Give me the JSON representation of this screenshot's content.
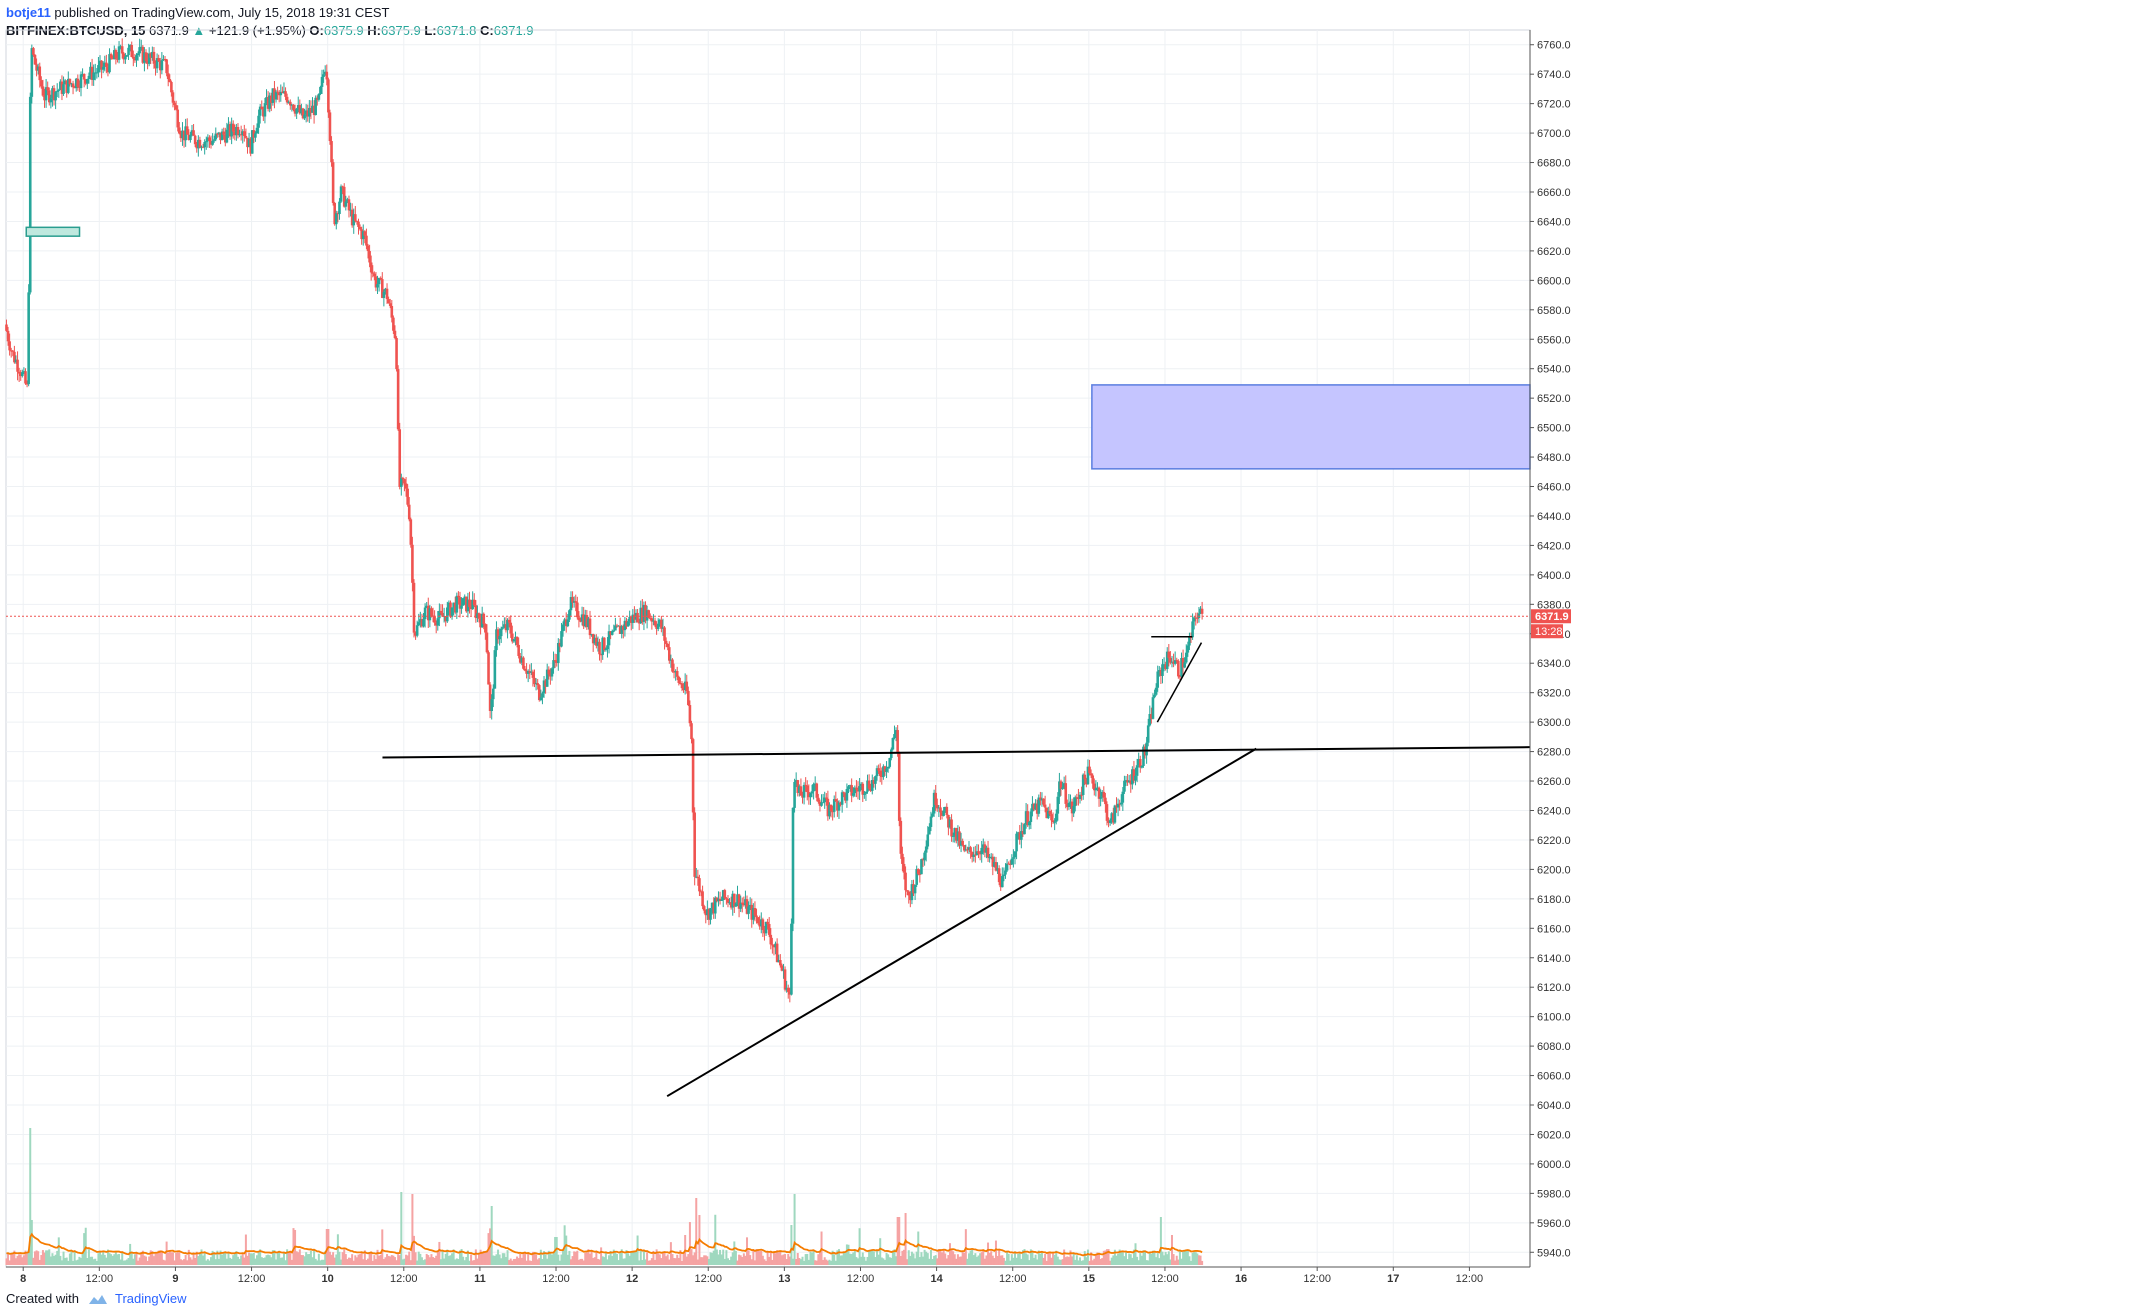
{
  "header": {
    "author": "botje11",
    "published_text": "published on TradingView.com, July 15, 2018 19:31 CEST",
    "symbol": "BITFINEX:BTCUSD, 15",
    "last_price": "6371.9",
    "change": "+121.9 (+1.95%)",
    "o_label": "O:",
    "o_value": "6375.9",
    "h_label": "H:",
    "h_value": "6375.9",
    "l_label": "L:",
    "l_value": "6371.8",
    "c_label": "C:",
    "c_value": "6371.9"
  },
  "footer": {
    "created_with": "Created with",
    "brand": "TradingView"
  },
  "colors": {
    "up": "#26a69a",
    "down": "#ef5350",
    "up_volume": "#9fd8bf",
    "down_volume": "#f5a3a3",
    "ma": "#f57c00",
    "grid": "#eef1f4",
    "rect_fill": "#c5c5ff",
    "rect_stroke": "#5b7ee0",
    "current_price": "#ef5350"
  },
  "chart_data": {
    "type": "candlestick",
    "symbol": "BITFINEX:BTCUSD",
    "interval": "15",
    "ylim": [
      5930,
      6770
    ],
    "y_ticks": [
      "6760.0",
      "6740.0",
      "6720.0",
      "6700.0",
      "6680.0",
      "6660.0",
      "6640.0",
      "6620.0",
      "6600.0",
      "6580.0",
      "6560.0",
      "6540.0",
      "6520.0",
      "6500.0",
      "6480.0",
      "6460.0",
      "6440.0",
      "6420.0",
      "6400.0",
      "6380.0",
      "6360.0",
      "6340.0",
      "6320.0",
      "6300.0",
      "6280.0",
      "6260.0",
      "6240.0",
      "6220.0",
      "6200.0",
      "6180.0",
      "6160.0",
      "6140.0",
      "6120.0",
      "6100.0",
      "6080.0",
      "6060.0",
      "6040.0",
      "6020.0",
      "6000.0",
      "5980.0",
      "5960.0",
      "5940.0"
    ],
    "x_ticks": [
      {
        "label": "8",
        "day": 8.0
      },
      {
        "label": "12:00",
        "day": 8.5
      },
      {
        "label": "9",
        "day": 9.0
      },
      {
        "label": "12:00",
        "day": 9.5
      },
      {
        "label": "10",
        "day": 10.0
      },
      {
        "label": "12:00",
        "day": 10.5
      },
      {
        "label": "11",
        "day": 11.0
      },
      {
        "label": "12:00",
        "day": 11.5
      },
      {
        "label": "12",
        "day": 12.0
      },
      {
        "label": "12:00",
        "day": 12.5
      },
      {
        "label": "13",
        "day": 13.0
      },
      {
        "label": "12:00",
        "day": 13.5
      },
      {
        "label": "14",
        "day": 14.0
      },
      {
        "label": "12:00",
        "day": 14.5
      },
      {
        "label": "15",
        "day": 15.0
      },
      {
        "label": "12:00",
        "day": 15.5
      },
      {
        "label": "16",
        "day": 16.0
      },
      {
        "label": "12:00",
        "day": 16.5
      },
      {
        "label": "17",
        "day": 17.0
      },
      {
        "label": "12:00",
        "day": 17.5
      }
    ],
    "x_range": [
      7.887,
      17.898
    ],
    "current_price": 6371.9,
    "current_price_label": "6371.9",
    "countdown_label": "13:28",
    "price_path": [
      [
        7.89,
        6570
      ],
      [
        7.94,
        6550
      ],
      [
        7.99,
        6540
      ],
      [
        8.04,
        6525
      ],
      [
        8.05,
        6640
      ],
      [
        8.06,
        6760
      ],
      [
        8.08,
        6750
      ],
      [
        8.15,
        6725
      ],
      [
        8.25,
        6730
      ],
      [
        8.35,
        6735
      ],
      [
        8.45,
        6740
      ],
      [
        8.55,
        6745
      ],
      [
        8.65,
        6755
      ],
      [
        8.75,
        6755
      ],
      [
        8.85,
        6750
      ],
      [
        8.95,
        6745
      ],
      [
        9.0,
        6720
      ],
      [
        9.05,
        6700
      ],
      [
        9.15,
        6695
      ],
      [
        9.25,
        6695
      ],
      [
        9.35,
        6700
      ],
      [
        9.45,
        6705
      ],
      [
        9.5,
        6690
      ],
      [
        9.55,
        6710
      ],
      [
        9.65,
        6725
      ],
      [
        9.75,
        6725
      ],
      [
        9.85,
        6710
      ],
      [
        9.95,
        6720
      ],
      [
        10.0,
        6750
      ],
      [
        10.03,
        6690
      ],
      [
        10.05,
        6640
      ],
      [
        10.1,
        6660
      ],
      [
        10.18,
        6640
      ],
      [
        10.25,
        6630
      ],
      [
        10.32,
        6600
      ],
      [
        10.4,
        6590
      ],
      [
        10.46,
        6560
      ],
      [
        10.48,
        6460
      ],
      [
        10.52,
        6460
      ],
      [
        10.55,
        6440
      ],
      [
        10.58,
        6360
      ],
      [
        10.65,
        6375
      ],
      [
        10.75,
        6370
      ],
      [
        10.85,
        6380
      ],
      [
        10.95,
        6380
      ],
      [
        11.05,
        6365
      ],
      [
        11.08,
        6300
      ],
      [
        11.12,
        6360
      ],
      [
        11.2,
        6365
      ],
      [
        11.3,
        6340
      ],
      [
        11.4,
        6320
      ],
      [
        11.5,
        6340
      ],
      [
        11.6,
        6380
      ],
      [
        11.7,
        6370
      ],
      [
        11.8,
        6350
      ],
      [
        11.9,
        6360
      ],
      [
        12.0,
        6370
      ],
      [
        12.1,
        6375
      ],
      [
        12.2,
        6365
      ],
      [
        12.3,
        6330
      ],
      [
        12.37,
        6320
      ],
      [
        12.4,
        6290
      ],
      [
        12.42,
        6200
      ],
      [
        12.5,
        6170
      ],
      [
        12.6,
        6180
      ],
      [
        12.7,
        6180
      ],
      [
        12.8,
        6170
      ],
      [
        12.9,
        6160
      ],
      [
        13.0,
        6130
      ],
      [
        13.05,
        6110
      ],
      [
        13.07,
        6270
      ],
      [
        13.1,
        6250
      ],
      [
        13.2,
        6255
      ],
      [
        13.3,
        6240
      ],
      [
        13.4,
        6250
      ],
      [
        13.5,
        6255
      ],
      [
        13.6,
        6260
      ],
      [
        13.7,
        6275
      ],
      [
        13.75,
        6300
      ],
      [
        13.77,
        6210
      ],
      [
        13.82,
        6180
      ],
      [
        13.9,
        6200
      ],
      [
        14.0,
        6250
      ],
      [
        14.1,
        6230
      ],
      [
        14.2,
        6210
      ],
      [
        14.3,
        6215
      ],
      [
        14.4,
        6200
      ],
      [
        14.45,
        6190
      ],
      [
        14.5,
        6210
      ],
      [
        14.6,
        6235
      ],
      [
        14.7,
        6245
      ],
      [
        14.78,
        6230
      ],
      [
        14.82,
        6260
      ],
      [
        14.9,
        6240
      ],
      [
        15.0,
        6265
      ],
      [
        15.1,
        6250
      ],
      [
        15.15,
        6230
      ],
      [
        15.22,
        6250
      ],
      [
        15.3,
        6265
      ],
      [
        15.38,
        6280
      ],
      [
        15.45,
        6325
      ],
      [
        15.5,
        6340
      ],
      [
        15.55,
        6345
      ],
      [
        15.6,
        6335
      ],
      [
        15.65,
        6345
      ],
      [
        15.72,
        6375
      ],
      [
        15.75,
        6372
      ]
    ],
    "volume_spikes": [
      [
        8.05,
        137
      ],
      [
        8.06,
        45
      ],
      [
        10.0,
        36
      ],
      [
        10.48,
        73
      ],
      [
        10.56,
        71
      ],
      [
        11.08,
        59
      ],
      [
        11.5,
        28
      ],
      [
        12.35,
        30
      ],
      [
        12.42,
        67
      ],
      [
        12.44,
        50
      ],
      [
        12.55,
        35
      ],
      [
        13.05,
        40
      ],
      [
        13.07,
        71
      ],
      [
        13.75,
        48
      ],
      [
        13.8,
        52
      ],
      [
        15.47,
        48
      ],
      [
        15.55,
        30
      ]
    ],
    "annotations": {
      "horizontal_line": {
        "x1": 10.36,
        "y1": 6276,
        "x2": 17.898,
        "y2": 6283
      },
      "rising_trendline": {
        "x1": 12.23,
        "y1": 6046,
        "x2": 16.1,
        "y2": 6282
      },
      "small_resistance": {
        "x1": 15.41,
        "y1": 6358,
        "x2": 15.68,
        "y2": 6358
      },
      "small_support": {
        "x1": 15.45,
        "y1": 6300,
        "x2": 15.74,
        "y2": 6354
      },
      "rect_blue": {
        "x1": 15.02,
        "y1": 6529,
        "x2": 17.898,
        "y2": 6472
      },
      "rect_teal": {
        "x1": 8.02,
        "y1": 6636,
        "x2": 8.37,
        "y2": 6630
      }
    }
  }
}
